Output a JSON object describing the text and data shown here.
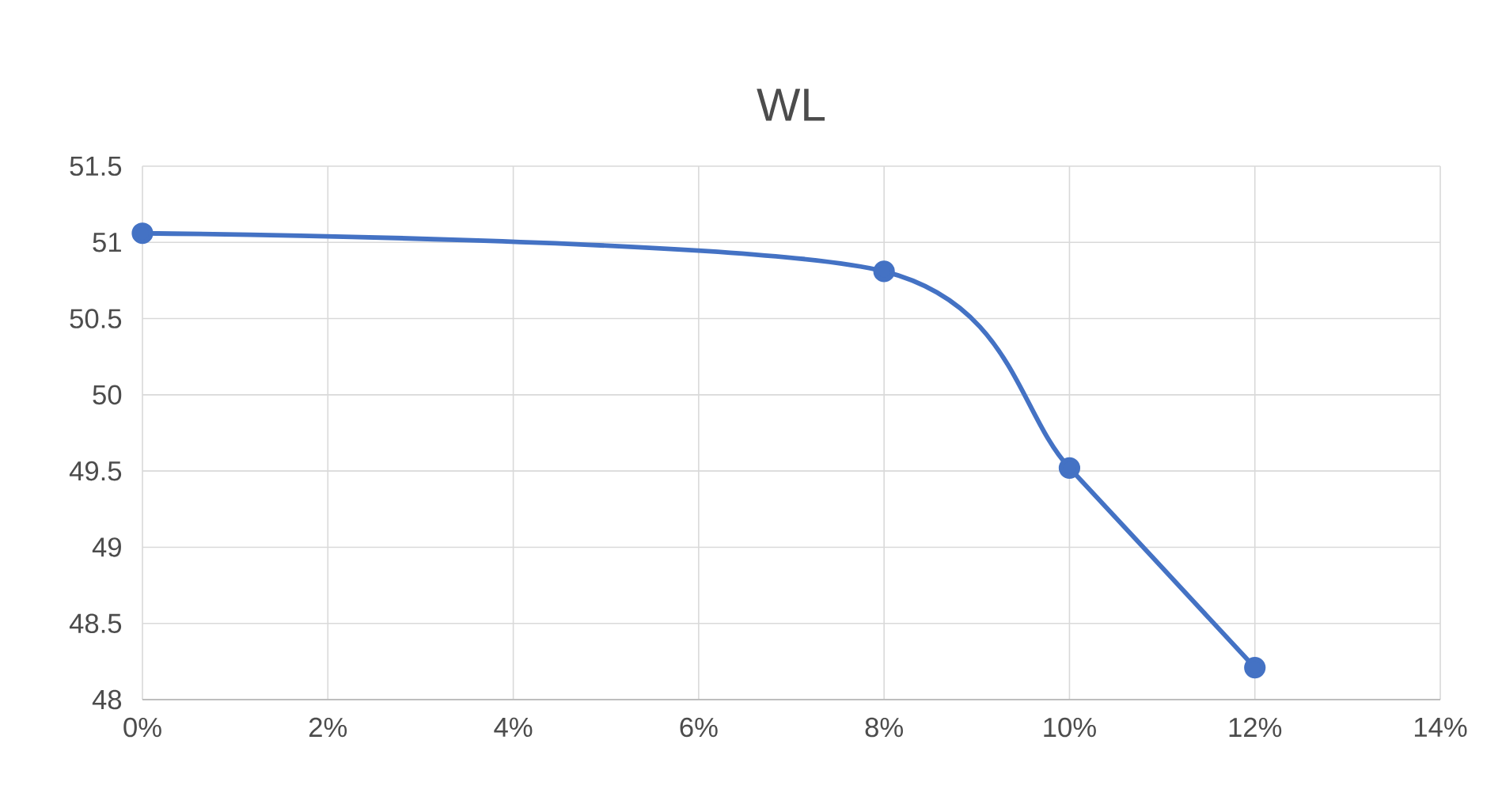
{
  "chart_data": {
    "type": "line",
    "title": "WL",
    "x": [
      0,
      8,
      10,
      12
    ],
    "series": [
      {
        "color": "#4472c4",
        "values": [
          51.06,
          50.81,
          49.52,
          48.21
        ]
      }
    ],
    "xlim": [
      0,
      14
    ],
    "xticks": [
      {
        "value": 0,
        "label": "0%"
      },
      {
        "value": 2,
        "label": "2%"
      },
      {
        "value": 4,
        "label": "4%"
      },
      {
        "value": 6,
        "label": "6%"
      },
      {
        "value": 8,
        "label": "8%"
      },
      {
        "value": 10,
        "label": "10%"
      },
      {
        "value": 12,
        "label": "12%"
      },
      {
        "value": 14,
        "label": "14%"
      }
    ],
    "ylim": [
      48,
      51.5
    ],
    "yticks": [
      48,
      48.5,
      49,
      49.5,
      50,
      50.5,
      51,
      51.5
    ],
    "grid": true,
    "marker": "circle",
    "line_style": "solid"
  }
}
